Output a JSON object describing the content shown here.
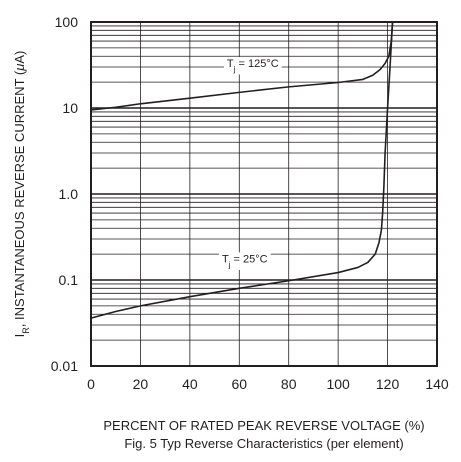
{
  "chart_data": {
    "type": "line",
    "title": "",
    "xlabel": "PERCENT OF RATED PEAK REVERSE VOLTAGE (%)",
    "ylabel": {
      "prefix": "I",
      "subscript": "R",
      "suffix": ", INSTANTANEOUS REVERSE CURRENT (",
      "mu": "μ",
      "unit_rest": "A)"
    },
    "caption": "Fig. 5  Typ Reverse Characteristics (per element)",
    "x_scale": "linear",
    "y_scale": "log",
    "xlim": [
      0,
      140
    ],
    "ylim": [
      0.01,
      100
    ],
    "grid": true,
    "x_ticks": [
      0,
      20,
      40,
      60,
      80,
      100,
      120,
      140
    ],
    "x_tick_labels": [
      "0",
      "20",
      "40",
      "60",
      "80",
      "100",
      "120",
      "140"
    ],
    "y_ticks": [
      0.01,
      0.1,
      1,
      10,
      100
    ],
    "y_tick_labels": [
      "0.01",
      "0.1",
      "1.0",
      "10",
      "100"
    ],
    "series": [
      {
        "label_main": "T",
        "label_sub": "j",
        "label_rest": " = 125°C",
        "label_at": [
          55,
          30
        ],
        "points": [
          [
            0,
            9.5
          ],
          [
            10,
            10.2
          ],
          [
            20,
            11.2
          ],
          [
            40,
            13.0
          ],
          [
            60,
            15.2
          ],
          [
            80,
            17.6
          ],
          [
            100,
            19.8
          ],
          [
            110,
            21.5
          ],
          [
            114,
            24
          ],
          [
            117,
            28
          ],
          [
            119,
            33
          ],
          [
            120.5,
            40
          ],
          [
            121.5,
            60
          ],
          [
            122,
            100
          ]
        ]
      },
      {
        "label_main": "T",
        "label_sub": "j",
        "label_rest": " = 25°C",
        "label_at": [
          53,
          0.16
        ],
        "points": [
          [
            0,
            0.036
          ],
          [
            10,
            0.043
          ],
          [
            20,
            0.05
          ],
          [
            40,
            0.064
          ],
          [
            60,
            0.08
          ],
          [
            80,
            0.098
          ],
          [
            100,
            0.122
          ],
          [
            108,
            0.14
          ],
          [
            112,
            0.16
          ],
          [
            115,
            0.2
          ],
          [
            116.5,
            0.27
          ],
          [
            117.5,
            0.38
          ],
          [
            118,
            0.6
          ],
          [
            118.5,
            1.2
          ],
          [
            119,
            3
          ],
          [
            120,
            10
          ],
          [
            121,
            30
          ],
          [
            122,
            100
          ]
        ]
      }
    ]
  }
}
